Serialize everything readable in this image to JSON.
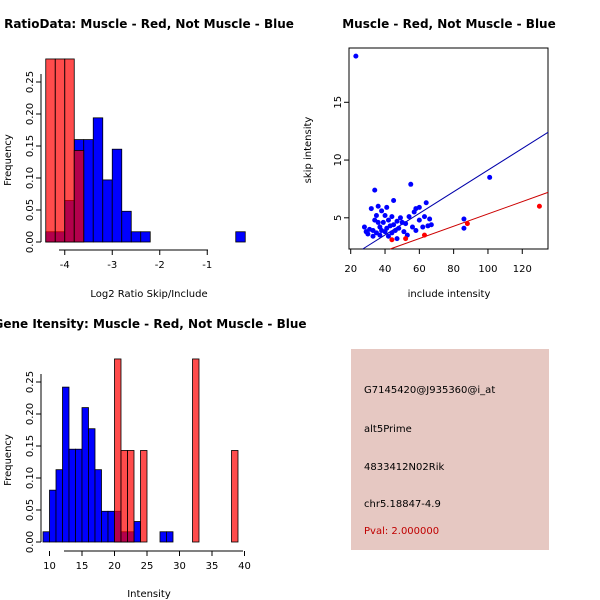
{
  "chart_data": [
    {
      "id": "ratio",
      "type": "bar",
      "title": "RatioData: Muscle - Red, Not Muscle - Blue",
      "xlabel": "Log2 Ratio Skip/Include",
      "ylabel": "Frequency",
      "xlim": [
        -4.5,
        -0.1
      ],
      "ylim": [
        0,
        0.3
      ],
      "xticks": [
        -4,
        -3,
        -2,
        -1
      ],
      "yticks": [
        0.0,
        0.05,
        0.1,
        0.15,
        0.2,
        0.25
      ],
      "ytick_labels": [
        "0.00",
        "0.05",
        "0.10",
        "0.15",
        "0.20",
        "0.25"
      ],
      "series": [
        {
          "name": "Not Muscle",
          "color": "#0000ff",
          "bins": [
            [
              -4.4,
              -4.2,
              0.016
            ],
            [
              -4.2,
              -4.0,
              0.016
            ],
            [
              -4.0,
              -3.8,
              0.065
            ],
            [
              -3.8,
              -3.6,
              0.16
            ],
            [
              -3.6,
              -3.4,
              0.16
            ],
            [
              -3.4,
              -3.2,
              0.194
            ],
            [
              -3.2,
              -3.0,
              0.097
            ],
            [
              -3.0,
              -2.8,
              0.145
            ],
            [
              -2.8,
              -2.6,
              0.048
            ],
            [
              -2.6,
              -2.4,
              0.016
            ],
            [
              -2.4,
              -2.2,
              0.016
            ],
            [
              -0.4,
              -0.2,
              0.016
            ]
          ]
        },
        {
          "name": "Muscle",
          "color": "#ff0000",
          "bins": [
            [
              -4.4,
              -4.2,
              0.286
            ],
            [
              -4.2,
              -4.0,
              0.286
            ],
            [
              -4.0,
              -3.8,
              0.286
            ],
            [
              -3.8,
              -3.6,
              0.143
            ]
          ]
        }
      ]
    },
    {
      "id": "scatter",
      "type": "scatter",
      "title": "Muscle - Red, Not Muscle - Blue",
      "xlabel": "include intensity",
      "ylabel": "skip intensity",
      "xlim": [
        19,
        135
      ],
      "ylim": [
        2.3,
        19.7
      ],
      "xticks": [
        20,
        40,
        60,
        80,
        100,
        120
      ],
      "yticks": [
        5,
        10,
        15
      ],
      "series": [
        {
          "name": "Not Muscle",
          "color": "#0000ff",
          "points": [
            [
              23,
              19
            ],
            [
              28,
              4.2
            ],
            [
              29,
              3.8
            ],
            [
              30,
              3.6
            ],
            [
              31,
              4
            ],
            [
              32,
              5.8
            ],
            [
              33,
              3.9
            ],
            [
              33,
              3.4
            ],
            [
              34,
              7.4
            ],
            [
              34,
              4.8
            ],
            [
              35,
              3.7
            ],
            [
              35,
              5.2
            ],
            [
              36,
              4.6
            ],
            [
              36,
              6
            ],
            [
              37,
              3.5
            ],
            [
              37,
              4.2
            ],
            [
              38,
              5.6
            ],
            [
              38,
              3.9
            ],
            [
              39,
              4.6
            ],
            [
              40,
              5.2
            ],
            [
              40,
              3.8
            ],
            [
              41,
              4.1
            ],
            [
              41,
              5.9
            ],
            [
              42,
              3.4
            ],
            [
              42,
              4.8
            ],
            [
              43,
              4.3
            ],
            [
              44,
              3.7
            ],
            [
              44,
              5.1
            ],
            [
              45,
              4.4
            ],
            [
              45,
              6.5
            ],
            [
              46,
              3.9
            ],
            [
              47,
              4.7
            ],
            [
              47,
              3.2
            ],
            [
              48,
              4.1
            ],
            [
              49,
              5
            ],
            [
              50,
              4.6
            ],
            [
              51,
              3.8
            ],
            [
              52,
              4.5
            ],
            [
              53,
              3.5
            ],
            [
              54,
              5.1
            ],
            [
              55,
              7.9
            ],
            [
              56,
              4.2
            ],
            [
              57,
              5.5
            ],
            [
              58,
              3.9
            ],
            [
              58,
              5.8
            ],
            [
              60,
              4.8
            ],
            [
              60,
              5.9
            ],
            [
              62,
              4.2
            ],
            [
              63,
              5.1
            ],
            [
              64,
              6.3
            ],
            [
              65,
              4.3
            ],
            [
              66,
              4.9
            ],
            [
              67,
              4.4
            ],
            [
              86,
              4.1
            ],
            [
              86,
              4.9
            ],
            [
              101,
              8.5
            ]
          ]
        },
        {
          "name": "Muscle",
          "color": "#ff0000",
          "points": [
            [
              44,
              3.1
            ],
            [
              52,
              3.2
            ],
            [
              63,
              3.5
            ],
            [
              88,
              4.5
            ],
            [
              130,
              6
            ]
          ]
        }
      ],
      "fit_lines": [
        {
          "name": "Not Muscle fit",
          "color": "#0000aa",
          "x": [
            27,
            135
          ],
          "y": [
            2.3,
            12.4
          ]
        },
        {
          "name": "Muscle fit",
          "color": "#cc0000",
          "x": [
            43,
            135
          ],
          "y": [
            2.3,
            7.2
          ]
        }
      ]
    },
    {
      "id": "intensity",
      "type": "bar",
      "title": "Gene Itensity: Muscle - Red, Not Muscle - Blue",
      "xlabel": "Intensity",
      "ylabel": "Frequency",
      "xlim": [
        9,
        41
      ],
      "ylim": [
        0,
        0.3
      ],
      "xticks": [
        10,
        15,
        20,
        25,
        30,
        35,
        40
      ],
      "yticks": [
        0.0,
        0.05,
        0.1,
        0.15,
        0.2,
        0.25
      ],
      "ytick_labels": [
        "0.00",
        "0.05",
        "0.10",
        "0.15",
        "0.20",
        "0.25"
      ],
      "series": [
        {
          "name": "Not Muscle",
          "color": "#0000ff",
          "bins": [
            [
              9,
              10,
              0.016
            ],
            [
              10,
              11,
              0.081
            ],
            [
              11,
              12,
              0.113
            ],
            [
              12,
              13,
              0.242
            ],
            [
              13,
              14,
              0.145
            ],
            [
              14,
              15,
              0.145
            ],
            [
              15,
              16,
              0.21
            ],
            [
              16,
              17,
              0.177
            ],
            [
              17,
              18,
              0.113
            ],
            [
              18,
              19,
              0.048
            ],
            [
              19,
              20,
              0.048
            ],
            [
              20,
              21,
              0.048
            ],
            [
              21,
              22,
              0.016
            ],
            [
              22,
              23,
              0.016
            ],
            [
              23,
              24,
              0.032
            ],
            [
              27,
              28,
              0.016
            ],
            [
              28,
              29,
              0.016
            ]
          ]
        },
        {
          "name": "Muscle",
          "color": "#ff0000",
          "bins": [
            [
              20,
              21,
              0.286
            ],
            [
              21,
              22,
              0.143
            ],
            [
              22,
              23,
              0.143
            ],
            [
              24,
              25,
              0.143
            ],
            [
              32,
              33,
              0.286
            ],
            [
              38,
              39,
              0.143
            ]
          ]
        }
      ]
    }
  ],
  "info": {
    "probe": "G7145420@J935360@i_at",
    "event_type": "alt5Prime",
    "gene": "4833412N02Rik",
    "location": "chr5.18847-4.9",
    "pval": "Pval: 2.000000"
  }
}
